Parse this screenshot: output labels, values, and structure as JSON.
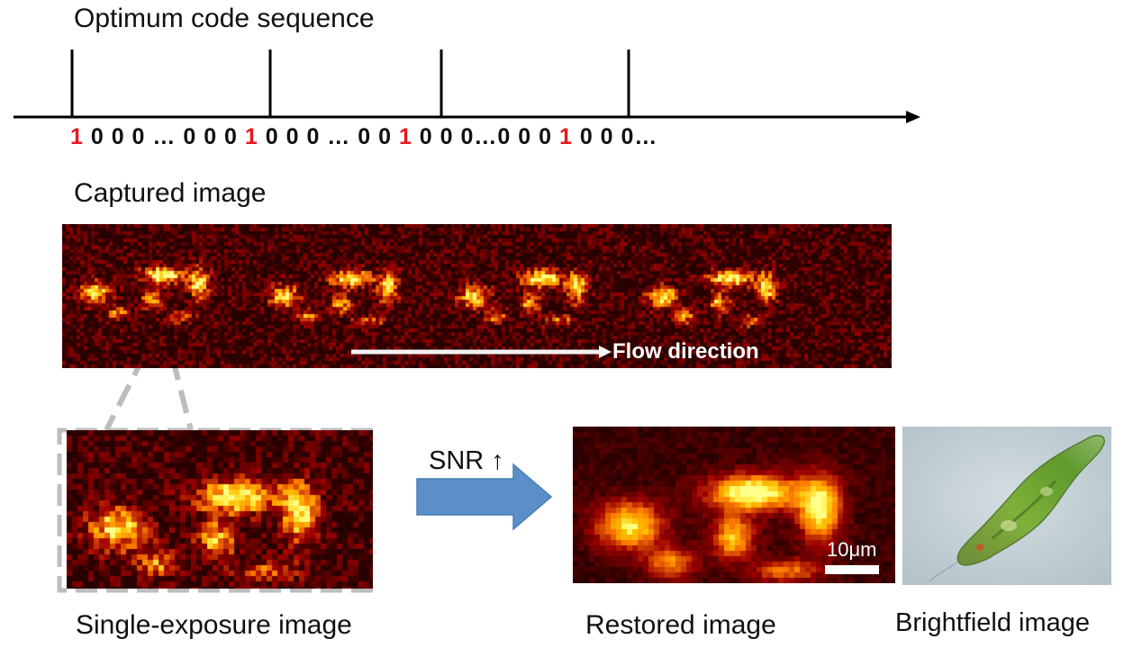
{
  "sequence": {
    "title": "Optimum code sequence",
    "code_segments": [
      {
        "text": "1",
        "highlight": true
      },
      {
        "text": " 0 0 0  … 0 0 0 ",
        "highlight": false
      },
      {
        "text": "1",
        "highlight": true
      },
      {
        "text": " 0 0 0 … 0 0 ",
        "highlight": false
      },
      {
        "text": "1",
        "highlight": true
      },
      {
        "text": " 0 0 0…0 0 0 ",
        "highlight": false
      },
      {
        "text": "1",
        "highlight": true
      },
      {
        "text": " 0 0 0…",
        "highlight": false
      }
    ],
    "highlight_color": "#e8191e"
  },
  "captured": {
    "label": "Captured image",
    "flow_label": "Flow direction"
  },
  "single": {
    "label": "Single-exposure image"
  },
  "snr": {
    "label": "SNR ↑",
    "arrow_color": "#5b8fc9"
  },
  "restored": {
    "label": "Restored image",
    "scale_bar": "10μm"
  },
  "brightfield": {
    "label": "Brightfield image"
  }
}
